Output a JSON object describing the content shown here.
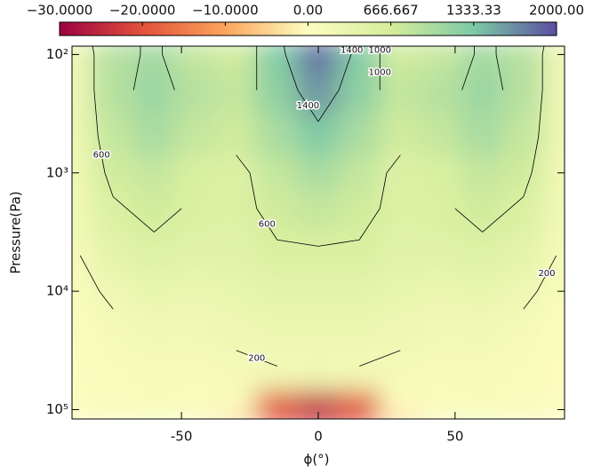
{
  "chart_data": {
    "type": "contour",
    "x_label": "ϕ(°)",
    "y_label": "Pressure(Pa)",
    "xlim": [
      -90,
      90
    ],
    "xticks": [
      -50,
      0,
      50
    ],
    "ylim": [
      120000,
      85
    ],
    "log_y": true,
    "yticks": [
      {
        "value": 100,
        "label": "10²"
      },
      {
        "value": 1000,
        "label": "10³"
      },
      {
        "value": 10000,
        "label": "10⁴"
      },
      {
        "value": 100000,
        "label": "10⁵"
      }
    ],
    "colorbar_ticks": [
      {
        "value": -30,
        "label": "−30.0000"
      },
      {
        "value": -20,
        "label": "−20.0000"
      },
      {
        "value": -10,
        "label": "−10.0000"
      },
      {
        "value": 0,
        "label": "0.00"
      },
      {
        "value": 666.667,
        "label": "666.667"
      },
      {
        "value": 1333.33,
        "label": "1333.33"
      },
      {
        "value": 2000,
        "label": "2000.00"
      }
    ],
    "colorbar_colors": [
      "#9e0142",
      "#e2513a",
      "#fba55d",
      "#fdfdc0",
      "#d4ed9c",
      "#7dc9a5",
      "#5a4ea2"
    ],
    "contour_levels": [
      200,
      600,
      1000,
      1400
    ],
    "x": [
      -90,
      -75,
      -60,
      -45,
      -30,
      -15,
      0,
      15,
      30,
      45,
      60,
      75,
      90
    ],
    "y": [
      85,
      100,
      200,
      500,
      1000,
      2000,
      5000,
      10000,
      20000,
      50000,
      100000,
      120000
    ],
    "z": [
      [
        300,
        900,
        1050,
        800,
        700,
        1300,
        1900,
        1300,
        700,
        800,
        1050,
        900,
        300
      ],
      [
        250,
        900,
        1050,
        800,
        700,
        1300,
        1800,
        1300,
        700,
        800,
        1050,
        900,
        250
      ],
      [
        250,
        900,
        1100,
        900,
        800,
        1200,
        1600,
        1200,
        800,
        900,
        1100,
        900,
        250
      ],
      [
        250,
        800,
        1000,
        800,
        700,
        1000,
        1300,
        1000,
        700,
        800,
        1000,
        800,
        250
      ],
      [
        200,
        700,
        800,
        600,
        500,
        800,
        1000,
        800,
        500,
        600,
        800,
        700,
        200
      ],
      [
        200,
        550,
        700,
        550,
        500,
        700,
        800,
        700,
        500,
        550,
        700,
        550,
        200
      ],
      [
        150,
        400,
        500,
        450,
        450,
        550,
        550,
        550,
        450,
        450,
        500,
        400,
        150
      ],
      [
        100,
        250,
        350,
        300,
        350,
        400,
        400,
        400,
        350,
        300,
        350,
        250,
        100
      ],
      [
        50,
        150,
        200,
        200,
        250,
        300,
        300,
        300,
        250,
        200,
        200,
        150,
        50
      ],
      [
        30,
        100,
        120,
        120,
        150,
        180,
        200,
        180,
        150,
        120,
        120,
        100,
        30
      ],
      [
        20,
        80,
        100,
        80,
        0,
        -20,
        -25,
        -20,
        0,
        80,
        100,
        80,
        20
      ],
      [
        20,
        80,
        100,
        80,
        -5,
        -20,
        -25,
        -20,
        -5,
        80,
        100,
        80,
        20
      ]
    ]
  }
}
